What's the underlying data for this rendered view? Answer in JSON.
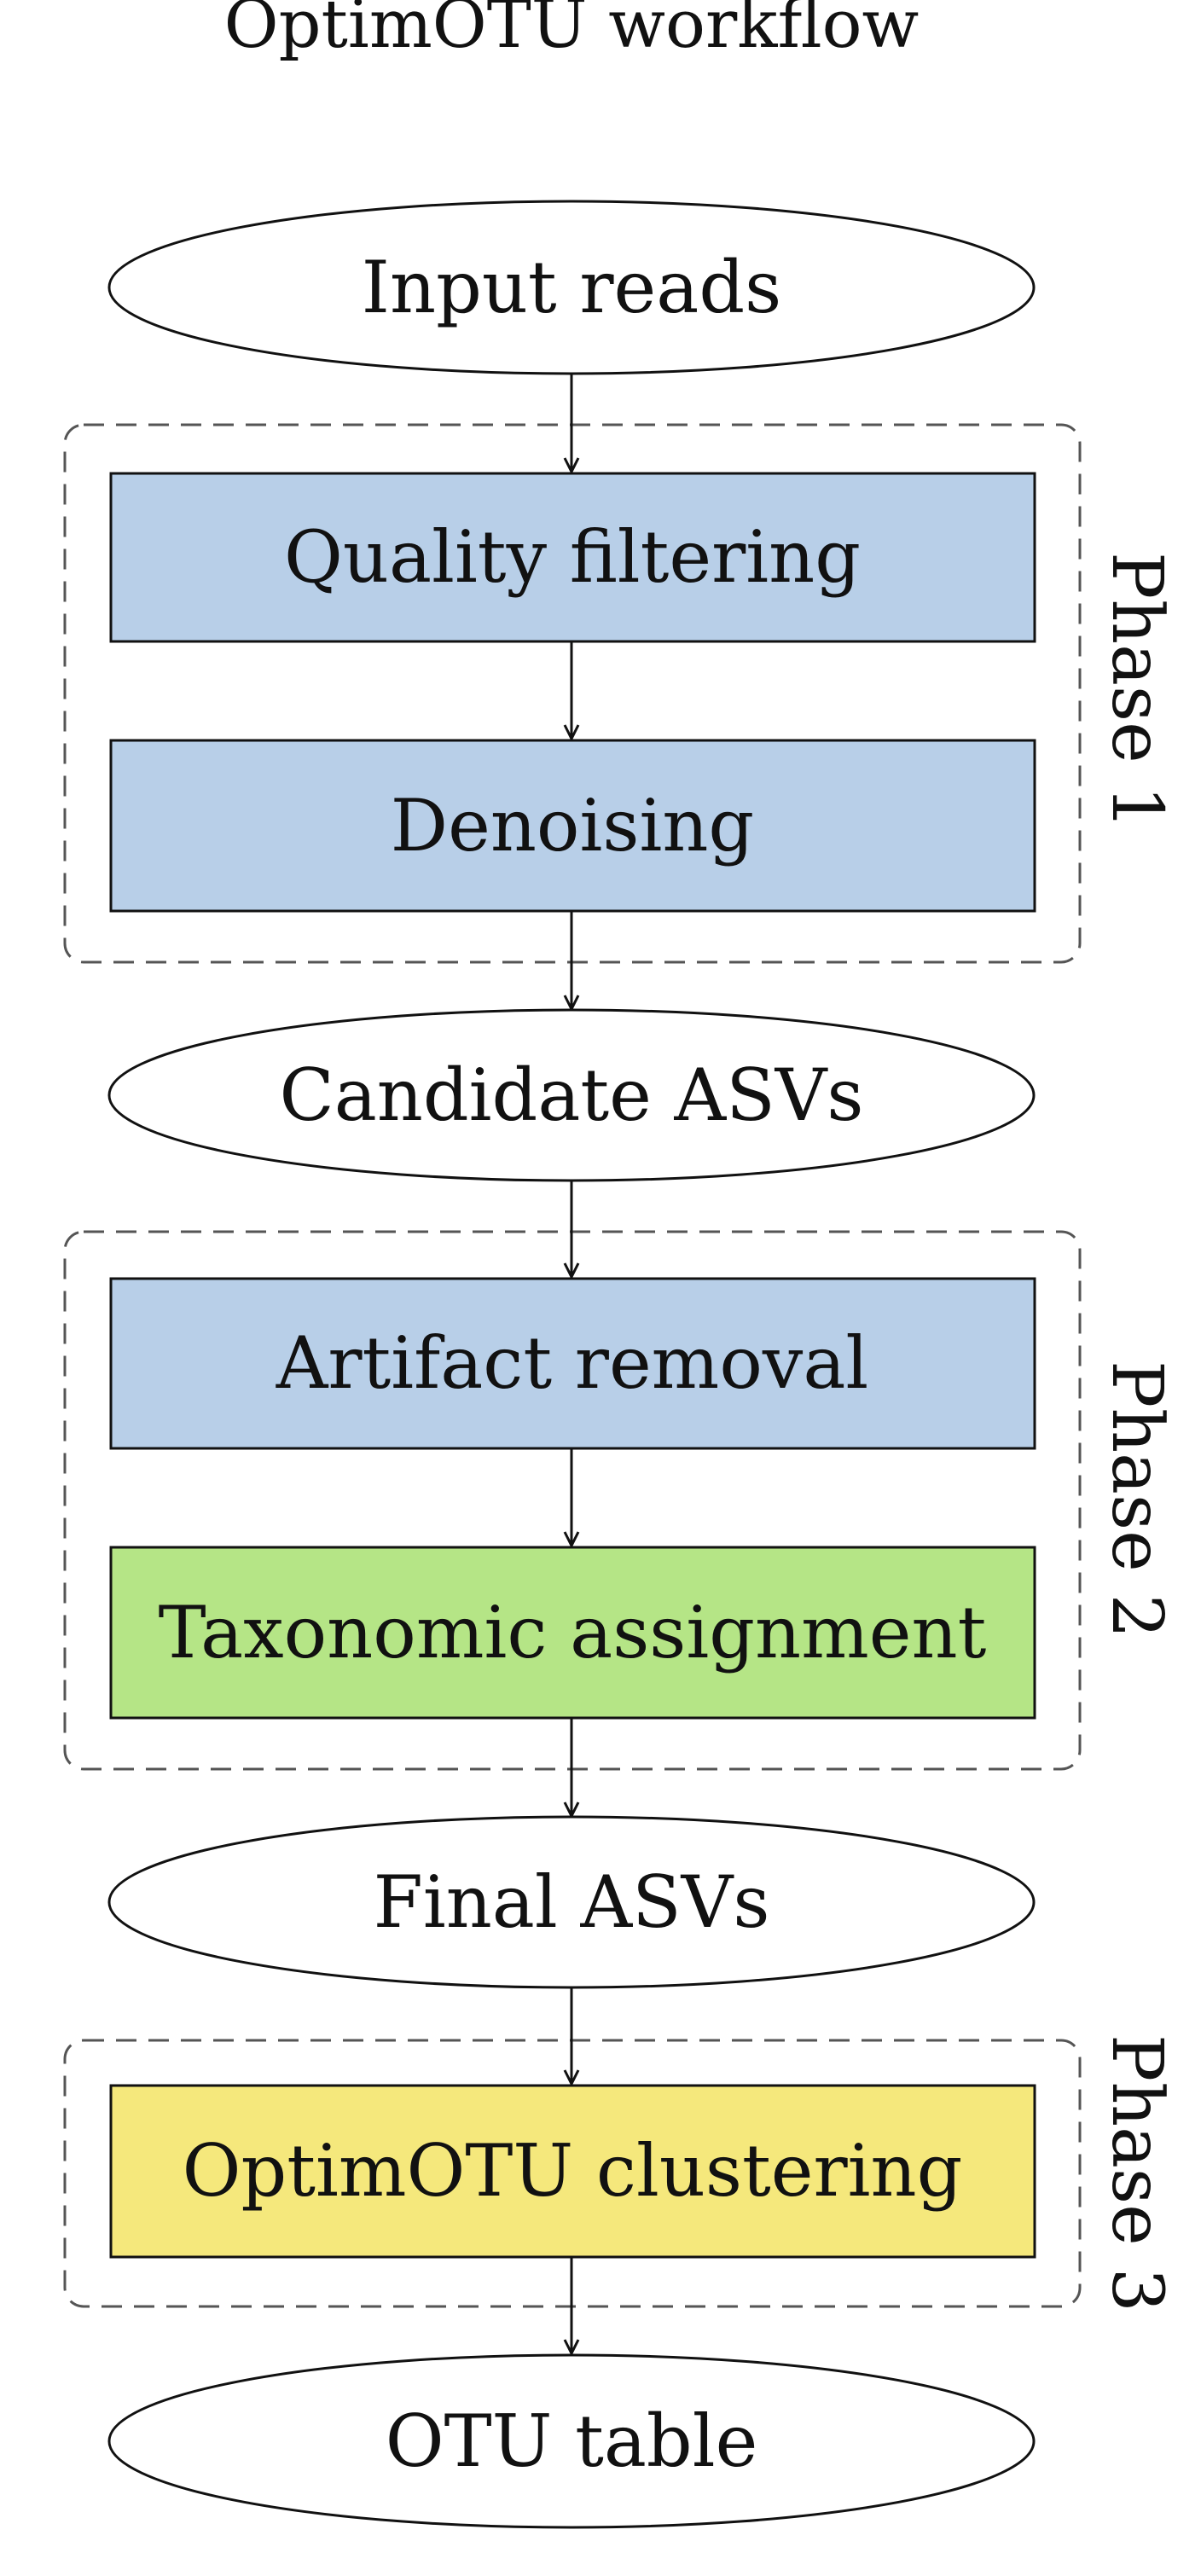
{
  "title": "OptimOTU workflow",
  "colors": {
    "blue": "#b8cfe8",
    "green": "#b5e586",
    "yellow": "#f5e87c",
    "outline": "#111111",
    "phase_outline": "#555555"
  },
  "nodes": {
    "input_reads": "Input reads",
    "quality_filtering": "Quality filtering",
    "denoising": "Denoising",
    "candidate_asvs": "Candidate ASVs",
    "artifact_removal": "Artifact removal",
    "taxonomic_assignment": "Taxonomic assignment",
    "final_asvs": "Final ASVs",
    "optimotu_clustering": "OptimOTU clustering",
    "otu_table": "OTU table"
  },
  "phases": {
    "phase1": "Phase 1",
    "phase2": "Phase 2",
    "phase3": "Phase 3"
  }
}
